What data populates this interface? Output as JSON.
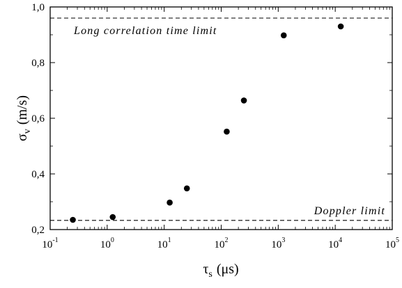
{
  "chart_data": {
    "type": "scatter",
    "x_scale": "log",
    "xlim": [
      0.1,
      100000
    ],
    "ylim": [
      0.2,
      1.0
    ],
    "xlabel": {
      "symbol": "τ",
      "subscript": "s",
      "unit": "(μs)"
    },
    "ylabel": {
      "symbol": "σ",
      "subscript": "v",
      "unit": "(m/s)"
    },
    "x_ticks": [
      {
        "base": "10",
        "exp": "-1",
        "value": 0.1
      },
      {
        "base": "10",
        "exp": "0",
        "value": 1
      },
      {
        "base": "10",
        "exp": "1",
        "value": 10
      },
      {
        "base": "10",
        "exp": "2",
        "value": 100
      },
      {
        "base": "10",
        "exp": "3",
        "value": 1000
      },
      {
        "base": "10",
        "exp": "4",
        "value": 10000
      },
      {
        "base": "10",
        "exp": "5",
        "value": 100000
      }
    ],
    "y_ticks": [
      {
        "label": "0,2",
        "value": 0.2
      },
      {
        "label": "0,4",
        "value": 0.4
      },
      {
        "label": "0,6",
        "value": 0.6
      },
      {
        "label": "0,8",
        "value": 0.8
      },
      {
        "label": "1,0",
        "value": 1.0
      }
    ],
    "series": [
      {
        "points": [
          {
            "x": 0.25,
            "y": 0.235
          },
          {
            "x": 1.25,
            "y": 0.245
          },
          {
            "x": 12.5,
            "y": 0.297
          },
          {
            "x": 25,
            "y": 0.348
          },
          {
            "x": 125,
            "y": 0.552
          },
          {
            "x": 250,
            "y": 0.664
          },
          {
            "x": 1250,
            "y": 0.898
          },
          {
            "x": 12500,
            "y": 0.93
          }
        ]
      }
    ],
    "reference_lines": [
      {
        "y": 0.96,
        "style": "dashed",
        "label": "Long correlation time limit",
        "label_position": "top-left"
      },
      {
        "y": 0.233,
        "style": "dashed",
        "label": "Doppler limit",
        "label_position": "bottom-right"
      }
    ],
    "grid": false,
    "legend": "none"
  }
}
